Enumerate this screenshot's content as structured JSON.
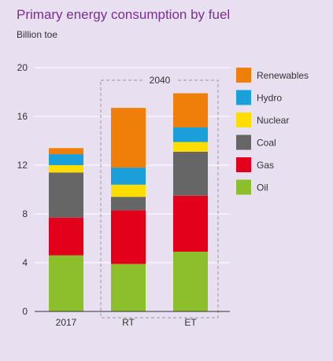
{
  "chart_data": {
    "type": "bar",
    "stacked": true,
    "title": "Primary energy consumption by fuel",
    "subtitle": "Billion toe",
    "categories": [
      "2017",
      "RT",
      "ET"
    ],
    "group_annotation": {
      "label": "2040",
      "categories": [
        "RT",
        "ET"
      ]
    },
    "ylim": [
      0,
      20
    ],
    "yticks": [
      0,
      4,
      8,
      12,
      16,
      20
    ],
    "series": [
      {
        "name": "Oil",
        "color": "#8cbf2c",
        "values": [
          4.6,
          3.9,
          4.9
        ]
      },
      {
        "name": "Gas",
        "color": "#e3001b",
        "values": [
          3.1,
          4.4,
          4.6
        ]
      },
      {
        "name": "Coal",
        "color": "#666666",
        "values": [
          3.7,
          1.1,
          3.6
        ]
      },
      {
        "name": "Nuclear",
        "color": "#ffdd00",
        "values": [
          0.6,
          1.0,
          0.8
        ]
      },
      {
        "name": "Hydro",
        "color": "#1a9fdb",
        "values": [
          0.9,
          1.4,
          1.2
        ]
      },
      {
        "name": "Renewables",
        "color": "#f07f0a",
        "values": [
          0.5,
          4.9,
          2.8
        ]
      }
    ],
    "legend_order": [
      "Renewables",
      "Hydro",
      "Nuclear",
      "Coal",
      "Gas",
      "Oil"
    ],
    "legend_position": "right",
    "grid": false
  }
}
